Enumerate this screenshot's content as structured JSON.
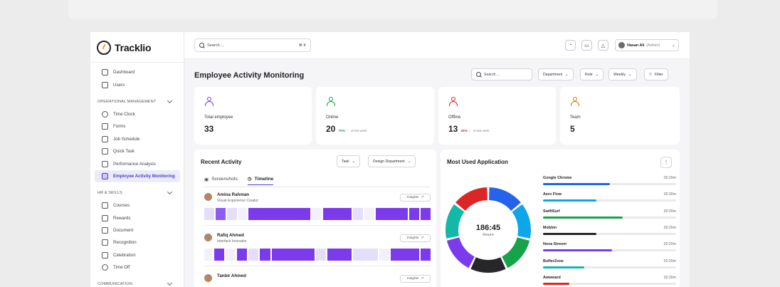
{
  "brand": {
    "name": "Tracklio"
  },
  "sidebar": {
    "top_items": [
      {
        "label": "Dashboard",
        "icon": "dashboard-icon"
      },
      {
        "label": "Users",
        "icon": "users-icon"
      }
    ],
    "sections": [
      {
        "title": "OPERATIONAL MANAGEMENT",
        "items": [
          {
            "label": "Time Clock",
            "icon": "clock-icon"
          },
          {
            "label": "Forms",
            "icon": "forms-icon"
          },
          {
            "label": "Job Schedule",
            "icon": "calendar-icon"
          },
          {
            "label": "Quick Task",
            "icon": "task-icon"
          },
          {
            "label": "Performance Analysis",
            "icon": "chart-icon"
          },
          {
            "label": "Employee Activity Monitoring",
            "icon": "employees-icon",
            "active": true
          }
        ]
      },
      {
        "title": "HR & SKILLS",
        "items": [
          {
            "label": "Courses",
            "icon": "courses-icon"
          },
          {
            "label": "Rewards",
            "icon": "gift-icon"
          },
          {
            "label": "Document",
            "icon": "document-icon"
          },
          {
            "label": "Recognition",
            "icon": "medal-icon"
          },
          {
            "label": "Celebration",
            "icon": "party-icon"
          },
          {
            "label": "Time Off",
            "icon": "time-off-icon"
          }
        ]
      },
      {
        "title": "COMMUNICATION",
        "items": []
      }
    ]
  },
  "topbar": {
    "search_placeholder": "Search ...",
    "shortcut": "⌘ K",
    "user_name": "Hasan Ali",
    "user_role": "(Admin)"
  },
  "page": {
    "title": "Employee Activity Monitoring",
    "search_placeholder": "Search ...",
    "filters": {
      "department": "Department",
      "role": "Role",
      "period": "Weekly",
      "filter": "Filter"
    }
  },
  "stats": [
    {
      "label": "Total employee",
      "value": "33",
      "delta": "",
      "vs": "",
      "color": "#7c3aed"
    },
    {
      "label": "Online",
      "value": "20",
      "delta": "75% ↑",
      "vs": "vs last week",
      "color": "#16a34a"
    },
    {
      "label": "Offline",
      "value": "13",
      "delta": "25% ↓",
      "vs": "vs last week",
      "color": "#dc2626"
    },
    {
      "label": "Team",
      "value": "5",
      "delta": "",
      "vs": "",
      "color": "#d97706"
    }
  ],
  "recent_activity": {
    "title": "Recent Activity",
    "task_filter": "Task",
    "department_filter": "Design Department",
    "tabs": [
      "Screenshots",
      "Timeline"
    ],
    "active_tab": "Timeline",
    "insights_label": "Insights",
    "employees": [
      {
        "name": "Amina Rahman",
        "title": "Visual Experience Creator"
      },
      {
        "name": "Rafiq Ahmed",
        "title": "Interface Innovator"
      },
      {
        "name": "Tanbir Ahmed",
        "title": ""
      }
    ]
  },
  "most_used": {
    "title": "Most Used Application",
    "total": "186:45",
    "unit": "Hours",
    "apps": [
      {
        "name": "Google Chrome",
        "time": "02:20m",
        "level": 0.5,
        "color": "#2563eb"
      },
      {
        "name": "Aero Flow",
        "time": "02:20m",
        "level": 0.4,
        "color": "#0ea5e9"
      },
      {
        "name": "SwiftSurf",
        "time": "02:20m",
        "level": 0.6,
        "color": "#16a34a"
      },
      {
        "name": "Mobbin",
        "time": "02:20m",
        "level": 0.4,
        "color": "#27272a"
      },
      {
        "name": "Nova Streem",
        "time": "02:20m",
        "level": 0.52,
        "color": "#7c3aed"
      },
      {
        "name": "BufferZone",
        "time": "02:20m",
        "level": 0.31,
        "color": "#14b8a6"
      },
      {
        "name": "Awwward",
        "time": "02:20m",
        "level": 0.2,
        "color": "#dc2626"
      }
    ],
    "donut_colors": [
      "#2563eb",
      "#0ea5e9",
      "#16a34a",
      "#27272a",
      "#7c3aed",
      "#14b8a6",
      "#dc2626"
    ]
  }
}
